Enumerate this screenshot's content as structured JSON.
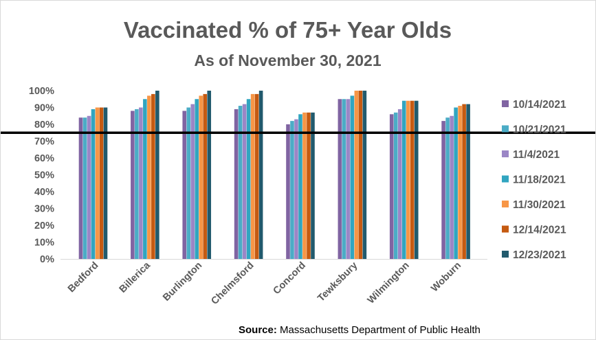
{
  "chart_data": {
    "type": "bar",
    "title": "Vaccinated % of 75+ Year Olds",
    "subtitle": "As of November 30, 2021",
    "categories": [
      "Bedford",
      "Billerica",
      "Burlington",
      "Chelmsford",
      "Concord",
      "Tewksbury",
      "Wilmington",
      "Woburn"
    ],
    "series": [
      {
        "name": "10/14/2021",
        "color": "#8064a2",
        "values": [
          84,
          88,
          88,
          89,
          80,
          95,
          86,
          82
        ]
      },
      {
        "name": "10/21/2021",
        "color": "#4bacc6",
        "values": [
          84,
          89,
          90,
          91,
          82,
          95,
          87,
          84
        ]
      },
      {
        "name": "11/4/2021",
        "color": "#9b86c6",
        "values": [
          85,
          90,
          92,
          92,
          83,
          95,
          89,
          85
        ]
      },
      {
        "name": "11/18/2021",
        "color": "#31a5c0",
        "values": [
          89,
          95,
          95,
          95,
          86,
          97,
          94,
          90
        ]
      },
      {
        "name": "11/30/2021",
        "color": "#f79646",
        "values": [
          90,
          97,
          97,
          98,
          87,
          100,
          94,
          91
        ]
      },
      {
        "name": "12/14/2021",
        "color": "#c55a11",
        "values": [
          90,
          98,
          98,
          98,
          87,
          100,
          94,
          92
        ]
      },
      {
        "name": "12/23/2021",
        "color": "#215a6d",
        "values": [
          90,
          100,
          100,
          100,
          87,
          100,
          94,
          92
        ]
      }
    ],
    "yticks": [
      "0%",
      "10%",
      "20%",
      "30%",
      "40%",
      "50%",
      "60%",
      "70%",
      "80%",
      "90%",
      "100%"
    ],
    "ylim": [
      0,
      100
    ],
    "reference_line": 75,
    "grid": false,
    "legend_position": "right"
  },
  "source": {
    "label": "Source:",
    "text": "Massachusetts Department  of Public Health"
  }
}
